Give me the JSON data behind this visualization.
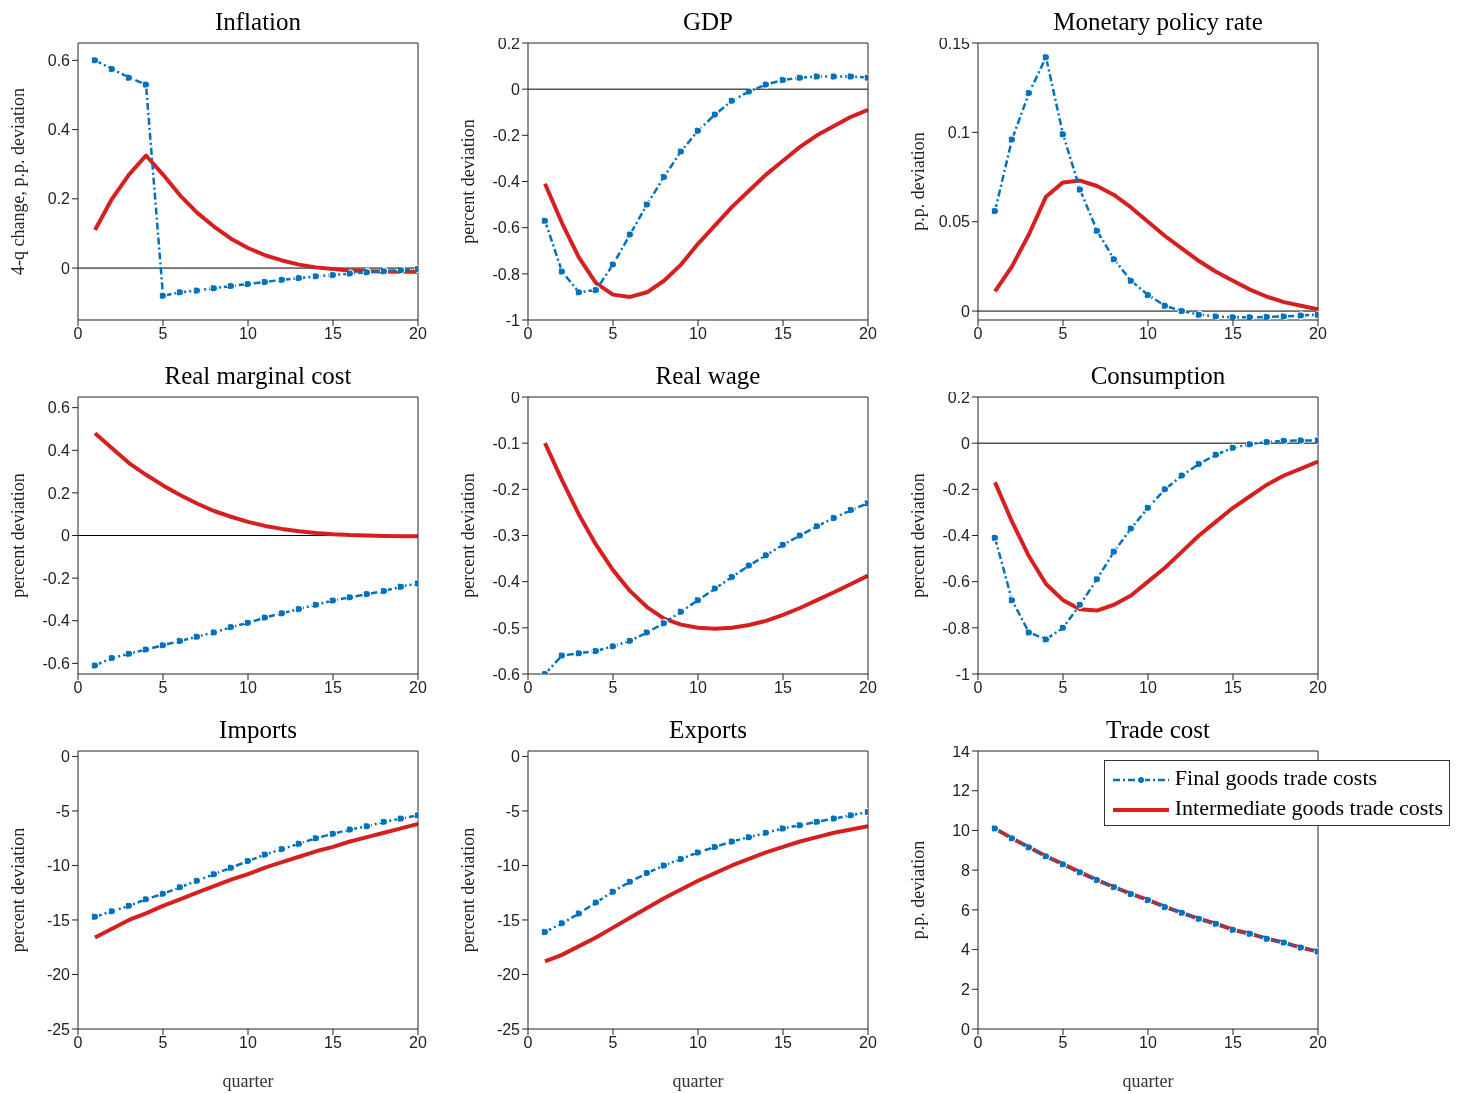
{
  "chart_data": [
    {
      "type": "line",
      "title": "Inflation",
      "ylabel": "4-q change, p.p. deviation",
      "x": [
        1,
        2,
        3,
        4,
        5,
        6,
        7,
        8,
        9,
        10,
        11,
        12,
        13,
        14,
        15,
        16,
        17,
        18,
        19,
        20
      ],
      "xlim": [
        0,
        20
      ],
      "xticks": [
        0,
        5,
        10,
        15,
        20
      ],
      "ylim": [
        -0.15,
        0.65
      ],
      "yticks": [
        0,
        0.2,
        0.4,
        0.6
      ],
      "grid": false,
      "legend": false,
      "ref_lines": [
        {
          "axis": "y",
          "value": 0,
          "color": "#000000"
        }
      ],
      "series": [
        {
          "color": "#0072bd",
          "marker": "circle",
          "line_style": "dashed",
          "values": [
            0.6,
            0.575,
            0.55,
            0.53,
            -0.08,
            -0.07,
            -0.065,
            -0.058,
            -0.052,
            -0.046,
            -0.04,
            -0.034,
            -0.029,
            -0.024,
            -0.02,
            -0.016,
            -0.012,
            -0.009,
            -0.006,
            -0.003
          ]
        },
        {
          "color": "#d62020",
          "marker": "none",
          "line_style": "solid",
          "values": [
            0.11,
            0.2,
            0.27,
            0.325,
            0.27,
            0.21,
            0.16,
            0.12,
            0.085,
            0.058,
            0.037,
            0.022,
            0.01,
            0.002,
            -0.003,
            -0.007,
            -0.009,
            -0.01,
            -0.011,
            -0.011
          ]
        }
      ]
    },
    {
      "type": "line",
      "title": "GDP",
      "ylabel": "percent deviation",
      "x": [
        1,
        2,
        3,
        4,
        5,
        6,
        7,
        8,
        9,
        10,
        11,
        12,
        13,
        14,
        15,
        16,
        17,
        18,
        19,
        20
      ],
      "xlim": [
        0,
        20
      ],
      "xticks": [
        0,
        5,
        10,
        15,
        20
      ],
      "ylim": [
        -1,
        0.2
      ],
      "yticks": [
        -1,
        -0.8,
        -0.6,
        -0.4,
        -0.2,
        0,
        0.2
      ],
      "grid": false,
      "legend": false,
      "ref_lines": [
        {
          "axis": "y",
          "value": 0,
          "color": "#000000"
        }
      ],
      "series": [
        {
          "color": "#0072bd",
          "marker": "circle",
          "line_style": "dashed",
          "values": [
            -0.57,
            -0.79,
            -0.88,
            -0.87,
            -0.76,
            -0.63,
            -0.5,
            -0.38,
            -0.27,
            -0.18,
            -0.11,
            -0.05,
            -0.01,
            0.02,
            0.04,
            0.05,
            0.055,
            0.055,
            0.055,
            0.05
          ]
        },
        {
          "color": "#d62020",
          "marker": "none",
          "line_style": "solid",
          "values": [
            -0.41,
            -0.58,
            -0.73,
            -0.84,
            -0.89,
            -0.9,
            -0.88,
            -0.83,
            -0.76,
            -0.67,
            -0.59,
            -0.51,
            -0.44,
            -0.37,
            -0.31,
            -0.25,
            -0.2,
            -0.16,
            -0.12,
            -0.09
          ]
        }
      ]
    },
    {
      "type": "line",
      "title": "Monetary policy rate",
      "ylabel": "p.p. deviation",
      "x": [
        1,
        2,
        3,
        4,
        5,
        6,
        7,
        8,
        9,
        10,
        11,
        12,
        13,
        14,
        15,
        16,
        17,
        18,
        19,
        20
      ],
      "xlim": [
        0,
        20
      ],
      "xticks": [
        0,
        5,
        10,
        15,
        20
      ],
      "ylim": [
        -0.005,
        0.15
      ],
      "yticks": [
        0,
        0.05,
        0.1,
        0.15
      ],
      "grid": false,
      "legend": false,
      "ref_lines": [
        {
          "axis": "y",
          "value": 0,
          "color": "#000000"
        }
      ],
      "series": [
        {
          "color": "#0072bd",
          "marker": "circle",
          "line_style": "dashed",
          "values": [
            0.056,
            0.096,
            0.122,
            0.142,
            0.099,
            0.068,
            0.045,
            0.029,
            0.017,
            0.009,
            0.003,
            0,
            -0.002,
            -0.003,
            -0.0035,
            -0.0035,
            -0.0033,
            -0.003,
            -0.0025,
            -0.002
          ]
        },
        {
          "color": "#d62020",
          "marker": "none",
          "line_style": "solid",
          "values": [
            0.011,
            0.025,
            0.043,
            0.064,
            0.072,
            0.073,
            0.07,
            0.065,
            0.058,
            0.05,
            0.042,
            0.035,
            0.028,
            0.022,
            0.017,
            0.012,
            0.008,
            0.005,
            0.003,
            0.001
          ]
        }
      ]
    },
    {
      "type": "line",
      "title": "Real marginal cost",
      "ylabel": "percent deviation",
      "x": [
        1,
        2,
        3,
        4,
        5,
        6,
        7,
        8,
        9,
        10,
        11,
        12,
        13,
        14,
        15,
        16,
        17,
        18,
        19,
        20
      ],
      "xlim": [
        0,
        20
      ],
      "xticks": [
        0,
        5,
        10,
        15,
        20
      ],
      "ylim": [
        -0.65,
        0.65
      ],
      "yticks": [
        -0.6,
        -0.4,
        -0.2,
        0,
        0.2,
        0.4,
        0.6
      ],
      "grid": false,
      "legend": false,
      "ref_lines": [
        {
          "axis": "y",
          "value": 0,
          "color": "#000000"
        }
      ],
      "series": [
        {
          "color": "#0072bd",
          "marker": "circle",
          "line_style": "dashed",
          "values": [
            -0.61,
            -0.575,
            -0.555,
            -0.535,
            -0.515,
            -0.495,
            -0.475,
            -0.455,
            -0.43,
            -0.41,
            -0.385,
            -0.365,
            -0.345,
            -0.325,
            -0.305,
            -0.29,
            -0.275,
            -0.26,
            -0.24,
            -0.225
          ]
        },
        {
          "color": "#d62020",
          "marker": "none",
          "line_style": "solid",
          "values": [
            0.48,
            0.41,
            0.34,
            0.285,
            0.235,
            0.19,
            0.15,
            0.115,
            0.088,
            0.064,
            0.045,
            0.031,
            0.02,
            0.012,
            0.006,
            0.002,
            0,
            -0.002,
            -0.003,
            -0.004
          ]
        }
      ]
    },
    {
      "type": "line",
      "title": "Real wage",
      "ylabel": "percent deviation",
      "x": [
        1,
        2,
        3,
        4,
        5,
        6,
        7,
        8,
        9,
        10,
        11,
        12,
        13,
        14,
        15,
        16,
        17,
        18,
        19,
        20
      ],
      "xlim": [
        0,
        20
      ],
      "xticks": [
        0,
        5,
        10,
        15,
        20
      ],
      "ylim": [
        -0.6,
        0
      ],
      "yticks": [
        -0.6,
        -0.5,
        -0.4,
        -0.3,
        -0.2,
        -0.1,
        0
      ],
      "grid": false,
      "legend": false,
      "series": [
        {
          "color": "#0072bd",
          "marker": "circle",
          "line_style": "dashed",
          "values": [
            -0.6,
            -0.56,
            -0.555,
            -0.55,
            -0.54,
            -0.528,
            -0.51,
            -0.49,
            -0.465,
            -0.44,
            -0.415,
            -0.39,
            -0.365,
            -0.343,
            -0.32,
            -0.3,
            -0.28,
            -0.262,
            -0.245,
            -0.23
          ]
        },
        {
          "color": "#d62020",
          "marker": "none",
          "line_style": "solid",
          "values": [
            -0.1,
            -0.18,
            -0.255,
            -0.32,
            -0.375,
            -0.42,
            -0.455,
            -0.48,
            -0.493,
            -0.5,
            -0.502,
            -0.5,
            -0.494,
            -0.485,
            -0.472,
            -0.457,
            -0.44,
            -0.423,
            -0.405,
            -0.387
          ]
        }
      ]
    },
    {
      "type": "line",
      "title": "Consumption",
      "ylabel": "percent deviation",
      "x": [
        1,
        2,
        3,
        4,
        5,
        6,
        7,
        8,
        9,
        10,
        11,
        12,
        13,
        14,
        15,
        16,
        17,
        18,
        19,
        20
      ],
      "xlim": [
        0,
        20
      ],
      "xticks": [
        0,
        5,
        10,
        15,
        20
      ],
      "ylim": [
        -1,
        0.2
      ],
      "yticks": [
        -1,
        -0.8,
        -0.6,
        -0.4,
        -0.2,
        0,
        0.2
      ],
      "grid": false,
      "legend": false,
      "ref_lines": [
        {
          "axis": "y",
          "value": 0,
          "color": "#000000"
        }
      ],
      "series": [
        {
          "color": "#0072bd",
          "marker": "circle",
          "line_style": "dashed",
          "values": [
            -0.41,
            -0.68,
            -0.82,
            -0.85,
            -0.8,
            -0.7,
            -0.59,
            -0.47,
            -0.37,
            -0.28,
            -0.2,
            -0.14,
            -0.09,
            -0.05,
            -0.02,
            -0.005,
            0.005,
            0.01,
            0.012,
            0.012
          ]
        },
        {
          "color": "#d62020",
          "marker": "none",
          "line_style": "solid",
          "values": [
            -0.17,
            -0.34,
            -0.49,
            -0.61,
            -0.68,
            -0.72,
            -0.725,
            -0.7,
            -0.66,
            -0.6,
            -0.54,
            -0.47,
            -0.4,
            -0.34,
            -0.28,
            -0.23,
            -0.18,
            -0.14,
            -0.11,
            -0.08
          ]
        }
      ]
    },
    {
      "type": "line",
      "title": "Imports",
      "xlabel": "quarter",
      "ylabel": "percent deviation",
      "x": [
        1,
        2,
        3,
        4,
        5,
        6,
        7,
        8,
        9,
        10,
        11,
        12,
        13,
        14,
        15,
        16,
        17,
        18,
        19,
        20
      ],
      "xlim": [
        0,
        20
      ],
      "xticks": [
        0,
        5,
        10,
        15,
        20
      ],
      "ylim": [
        -25,
        0.5
      ],
      "yticks": [
        -25,
        -20,
        -15,
        -10,
        -5,
        0
      ],
      "grid": false,
      "legend": false,
      "series": [
        {
          "color": "#0072bd",
          "marker": "circle",
          "line_style": "dashed",
          "values": [
            -14.7,
            -14.2,
            -13.7,
            -13.1,
            -12.6,
            -12,
            -11.4,
            -10.8,
            -10.2,
            -9.6,
            -9,
            -8.5,
            -8,
            -7.5,
            -7.1,
            -6.7,
            -6.4,
            -6,
            -5.7,
            -5.4
          ]
        },
        {
          "color": "#d62020",
          "marker": "none",
          "line_style": "solid",
          "values": [
            -16.6,
            -15.8,
            -15,
            -14.4,
            -13.7,
            -13.1,
            -12.5,
            -11.9,
            -11.3,
            -10.8,
            -10.2,
            -9.7,
            -9.2,
            -8.7,
            -8.3,
            -7.8,
            -7.4,
            -7,
            -6.6,
            -6.2
          ]
        }
      ]
    },
    {
      "type": "line",
      "title": "Exports",
      "xlabel": "quarter",
      "ylabel": "percent deviation",
      "x": [
        1,
        2,
        3,
        4,
        5,
        6,
        7,
        8,
        9,
        10,
        11,
        12,
        13,
        14,
        15,
        16,
        17,
        18,
        19,
        20
      ],
      "xlim": [
        0,
        20
      ],
      "xticks": [
        0,
        5,
        10,
        15,
        20
      ],
      "ylim": [
        -25,
        0.5
      ],
      "yticks": [
        -25,
        -20,
        -15,
        -10,
        -5,
        0
      ],
      "grid": false,
      "legend": false,
      "series": [
        {
          "color": "#0072bd",
          "marker": "circle",
          "line_style": "dashed",
          "values": [
            -16.1,
            -15.3,
            -14.4,
            -13.4,
            -12.4,
            -11.5,
            -10.7,
            -10,
            -9.4,
            -8.8,
            -8.3,
            -7.8,
            -7.4,
            -7,
            -6.6,
            -6.3,
            -6,
            -5.7,
            -5.4,
            -5.1
          ]
        },
        {
          "color": "#d62020",
          "marker": "none",
          "line_style": "solid",
          "values": [
            -18.8,
            -18.2,
            -17.4,
            -16.6,
            -15.7,
            -14.8,
            -13.9,
            -13,
            -12.2,
            -11.4,
            -10.7,
            -10,
            -9.4,
            -8.8,
            -8.3,
            -7.8,
            -7.4,
            -7,
            -6.7,
            -6.4
          ]
        }
      ]
    },
    {
      "type": "line",
      "title": "Trade cost",
      "xlabel": "quarter",
      "ylabel": "p.p. deviation",
      "x": [
        1,
        2,
        3,
        4,
        5,
        6,
        7,
        8,
        9,
        10,
        11,
        12,
        13,
        14,
        15,
        16,
        17,
        18,
        19,
        20
      ],
      "xlim": [
        0,
        20
      ],
      "xticks": [
        0,
        5,
        10,
        15,
        20
      ],
      "ylim": [
        0,
        14
      ],
      "yticks": [
        0,
        2,
        4,
        6,
        8,
        10,
        12,
        14
      ],
      "grid": false,
      "legend": "top right",
      "series": [
        {
          "name": "Final goods trade costs",
          "color": "#0072bd",
          "marker": "circle",
          "line_style": "dashed",
          "values": [
            10.1,
            9.6,
            9.15,
            8.7,
            8.3,
            7.9,
            7.5,
            7.15,
            6.8,
            6.5,
            6.15,
            5.85,
            5.55,
            5.3,
            5,
            4.8,
            4.55,
            4.35,
            4.1,
            3.9
          ]
        },
        {
          "name": "Intermediate goods trade costs",
          "color": "#d62020",
          "marker": "none",
          "line_style": "solid",
          "values": [
            10.1,
            9.6,
            9.15,
            8.7,
            8.3,
            7.9,
            7.5,
            7.15,
            6.8,
            6.5,
            6.15,
            5.85,
            5.55,
            5.3,
            5,
            4.8,
            4.55,
            4.35,
            4.1,
            3.9
          ]
        }
      ]
    }
  ]
}
